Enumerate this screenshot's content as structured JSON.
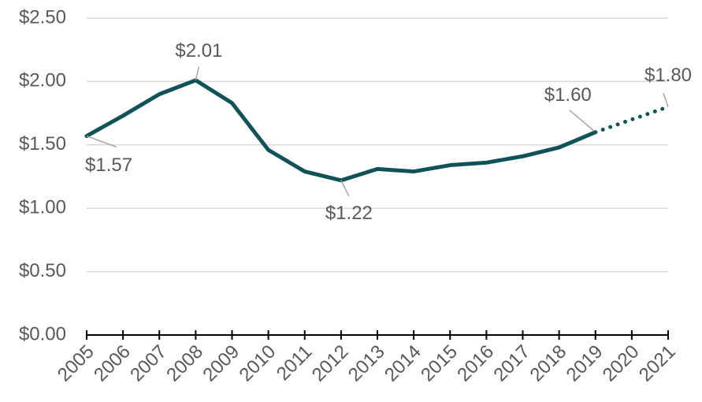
{
  "chart_data": {
    "type": "line",
    "categories": [
      "2005",
      "2006",
      "2007",
      "2008",
      "2009",
      "2010",
      "2011",
      "2012",
      "2013",
      "2014",
      "2015",
      "2016",
      "2017",
      "2018",
      "2019",
      "2020",
      "2021"
    ],
    "series": [
      {
        "style": "solid",
        "color": "#0f5257",
        "values": [
          1.57,
          1.73,
          1.9,
          2.01,
          1.83,
          1.46,
          1.29,
          1.22,
          1.31,
          1.29,
          1.34,
          1.36,
          1.41,
          1.48,
          1.6,
          null,
          null
        ],
        "value_labels": [
          "$1.57",
          null,
          null,
          "$2.01",
          null,
          null,
          null,
          "$1.22",
          null,
          null,
          null,
          null,
          null,
          null,
          "$1.60",
          null,
          null
        ]
      },
      {
        "style": "dotted",
        "color": "#0f5257",
        "values": [
          null,
          null,
          null,
          null,
          null,
          null,
          null,
          null,
          null,
          null,
          null,
          null,
          null,
          null,
          1.6,
          1.7,
          1.8
        ],
        "value_labels": [
          null,
          null,
          null,
          null,
          null,
          null,
          null,
          null,
          null,
          null,
          null,
          null,
          null,
          null,
          null,
          null,
          "$1.80"
        ]
      }
    ],
    "ylim": [
      0,
      2.5
    ],
    "yticks": [
      {
        "value": 0,
        "label": "$0.00"
      },
      {
        "value": 0.5,
        "label": "$0.50"
      },
      {
        "value": 1,
        "label": "$1.00"
      },
      {
        "value": 1.5,
        "label": "$1.50"
      },
      {
        "value": 2,
        "label": "$2.00"
      },
      {
        "value": 2.5,
        "label": "$2.50"
      }
    ],
    "grid": true
  }
}
